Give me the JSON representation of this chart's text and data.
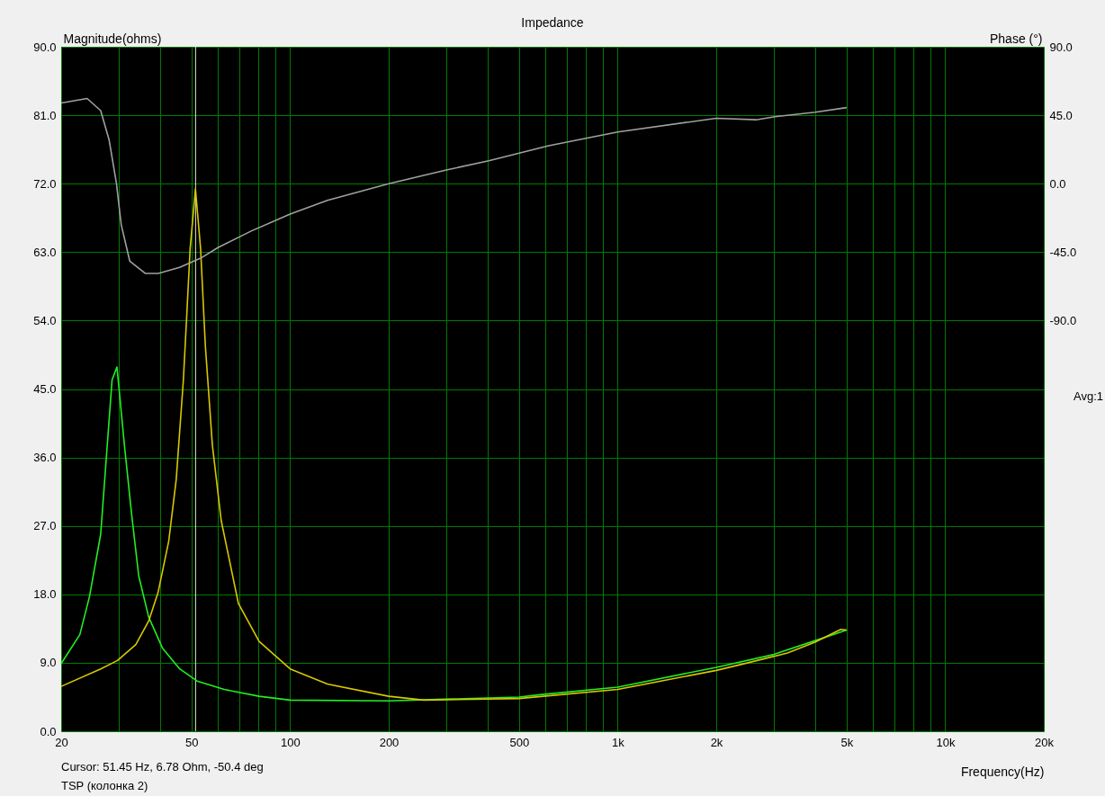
{
  "chart_data": {
    "type": "line",
    "title": "Impedance",
    "xlabel": "Frequency(Hz)",
    "ylabel": "Magnitude(ohms)",
    "y2label": "Phase (°)",
    "log": "x",
    "grid": true,
    "xlim": [
      20,
      20000
    ],
    "xticks": [
      20,
      {
        "value": 30,
        "label": null
      },
      {
        "value": 40,
        "label": null
      },
      50,
      {
        "value": 60,
        "label": null
      },
      {
        "value": 70,
        "label": null
      },
      {
        "value": 80,
        "label": null
      },
      {
        "value": 90,
        "label": null
      },
      100,
      200,
      {
        "value": 300,
        "label": null
      },
      {
        "value": 400,
        "label": null
      },
      500,
      {
        "value": 600,
        "label": null
      },
      {
        "value": 700,
        "label": null
      },
      {
        "value": 800,
        "label": null
      },
      {
        "value": 900,
        "label": null
      },
      {
        "value": 1000,
        "label": "1k"
      },
      {
        "value": 2000,
        "label": "2k"
      },
      {
        "value": 3000,
        "label": null
      },
      {
        "value": 4000,
        "label": null
      },
      {
        "value": 5000,
        "label": "5k"
      },
      {
        "value": 6000,
        "label": null
      },
      {
        "value": 7000,
        "label": null
      },
      {
        "value": 8000,
        "label": null
      },
      {
        "value": 9000,
        "label": null
      },
      {
        "value": 10000,
        "label": "10k"
      },
      {
        "value": 20000,
        "label": "20k"
      }
    ],
    "ylim": [
      0,
      90
    ],
    "yticks": [
      {
        "value": 0,
        "label": "0.0"
      },
      {
        "value": 9,
        "label": "9.0"
      },
      {
        "value": 18,
        "label": "18.0"
      },
      {
        "value": 27,
        "label": "27.0"
      },
      {
        "value": 36,
        "label": "36.0"
      },
      {
        "value": 45,
        "label": "45.0"
      },
      {
        "value": 54,
        "label": "54.0"
      },
      {
        "value": 63,
        "label": "63.0"
      },
      {
        "value": 72,
        "label": "72.0"
      },
      {
        "value": 81,
        "label": "81.0"
      },
      {
        "value": 90,
        "label": "90.0"
      }
    ],
    "y2lim": [
      -360,
      90
    ],
    "y2ticks": [
      {
        "value": -90,
        "label": "-90.0"
      },
      {
        "value": -45,
        "label": "-45.0"
      },
      {
        "value": 0,
        "label": "0.0"
      },
      {
        "value": 45,
        "label": "45.0"
      },
      {
        "value": 90,
        "label": "90.0"
      }
    ],
    "series": [
      {
        "color": "#22ee22",
        "x": [
          20,
          22.8,
          24.4,
          26.4,
          28.6,
          29.6,
          31.2,
          32.8,
          34.5,
          37,
          40.8,
          46,
          52,
          62.9,
          80.4,
          100,
          200,
          500,
          580,
          1000,
          2000,
          3000,
          4000,
          5000
        ],
        "values": [
          8.9,
          12.7,
          17.7,
          25.9,
          46.2,
          47.9,
          37.6,
          28.6,
          20.4,
          15.0,
          10.9,
          8.2,
          6.6,
          5.5,
          4.6,
          4.1,
          4.0,
          4.5,
          4.8,
          5.8,
          8.4,
          10.1,
          11.9,
          13.3
        ]
      },
      {
        "color": "#d8c800",
        "x": [
          20,
          26.4,
          29.7,
          33.8,
          37,
          39.5,
          42.6,
          44.9,
          47.2,
          48.3,
          49.5,
          51.4,
          53.3,
          55.1,
          57.9,
          61.6,
          69.5,
          80.4,
          100,
          130,
          200,
          256,
          500,
          1000,
          2000,
          2500,
          3300,
          4000,
          4800,
          5000
        ],
        "values": [
          5.9,
          8.2,
          9.3,
          11.4,
          14.5,
          18.2,
          25.0,
          33.1,
          46.1,
          54.3,
          63.4,
          71.3,
          63.4,
          50.7,
          37.6,
          27.7,
          16.8,
          11.8,
          8.2,
          6.2,
          4.6,
          4.1,
          4.3,
          5.5,
          8.0,
          9.0,
          10.3,
          11.7,
          13.4,
          13.3
        ]
      },
      {
        "color": "#a0a0a0",
        "axis": "y2",
        "x": [
          20,
          24,
          26.4,
          28,
          29.5,
          30.5,
          32.4,
          36.1,
          39.6,
          46,
          53.3,
          60.2,
          76.3,
          100,
          130,
          200,
          300,
          404,
          616,
          1000,
          2000,
          2646,
          3020,
          4010,
          5000
        ],
        "values": [
          53,
          56,
          48,
          29,
          0,
          -27,
          -51,
          -59,
          -59,
          -55,
          -49,
          -42,
          -31,
          -20,
          -11,
          0,
          9,
          15,
          25,
          34,
          43,
          42,
          44,
          47,
          50
        ]
      }
    ],
    "ref_lines": [
      {
        "axis": "x",
        "value": 51.45,
        "color": "#e8e8d0"
      }
    ],
    "annotations": [
      "Cursor: 51.45 Hz, 6.78 Ohm, -50.4 deg",
      "TSP (колонка 2)",
      "Avg:1"
    ]
  }
}
